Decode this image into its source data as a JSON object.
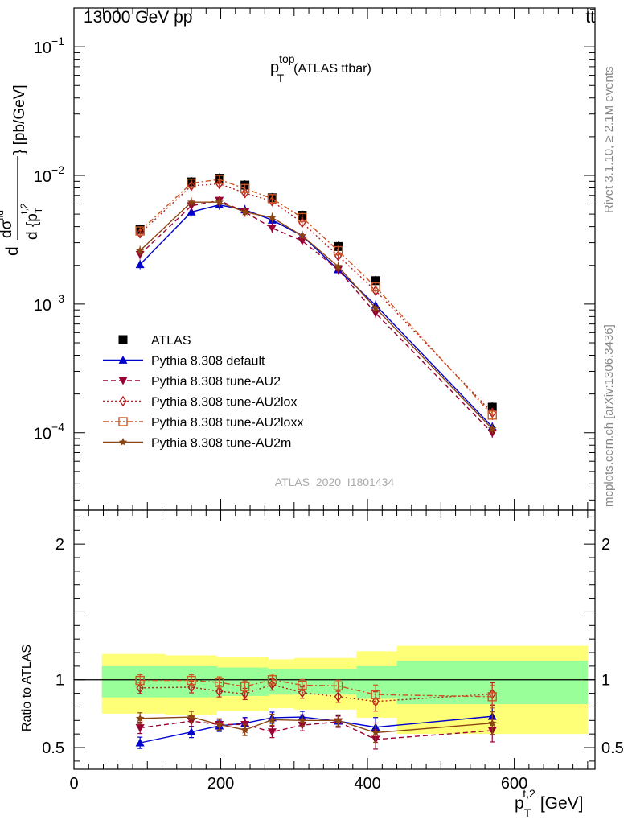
{
  "header": {
    "left": "13000 GeV pp",
    "right": "tt̄"
  },
  "side": {
    "rivet": "Rivet 3.1.10, ≥ 2.1M events",
    "mcplots": "mcplots.cern.ch [arXiv:1306.3436]"
  },
  "analysis_id": "ATLAS_2020_I1801434",
  "chart_data": [
    {
      "type": "line",
      "title": "p_T^top (ATLAS ttbar)",
      "title_main": "p",
      "title_sup": "top",
      "title_sub": "T",
      "title_suffix": "(ATLAS ttbar)",
      "ylabel": "d dσ^{fid} / d {p_T^{t,2}} [pb/GeV]",
      "ylabel_num": "dσ",
      "ylabel_num_sup": "fid",
      "ylabel_den": "d {p",
      "ylabel_den_sub": "T",
      "ylabel_den_sup": "t,2",
      "ylabel_unit": "} [pb/GeV]",
      "y_scale": "log",
      "ylim": [
        2.5e-05,
        0.2
      ],
      "xlim": [
        0,
        710
      ],
      "y_tick_labels": [
        {
          "value": 0.1,
          "mantissa": "10",
          "exp": "−1"
        },
        {
          "value": 0.01,
          "mantissa": "10",
          "exp": "−2"
        },
        {
          "value": 0.001,
          "mantissa": "10",
          "exp": "−3"
        },
        {
          "value": 0.0001,
          "mantissa": "10",
          "exp": "−4"
        }
      ],
      "legend_position": "left-middle",
      "x": [
        90,
        160,
        198,
        233,
        270,
        311,
        360,
        411,
        570
      ],
      "series": [
        {
          "name": "ATLAS",
          "color": "#000000",
          "marker": "square",
          "dash": "none",
          "values": [
            0.0038,
            0.0089,
            0.0095,
            0.0084,
            0.0067,
            0.0049,
            0.0028,
            0.00152,
            0.000158
          ]
        },
        {
          "name": "Pythia 8.308 default",
          "color": "#0000cc",
          "marker": "triangle-up",
          "dash": "solid",
          "values": [
            0.00203,
            0.0052,
            0.0059,
            0.0054,
            0.0045,
            0.0034,
            0.00185,
            0.00098,
            0.000111
          ]
        },
        {
          "name": "Pythia 8.308 tune-AU2",
          "color": "#990033",
          "marker": "triangle-down",
          "dash": "dashed",
          "values": [
            0.00243,
            0.0058,
            0.0064,
            0.0052,
            0.0039,
            0.0031,
            0.00185,
            0.00085,
            9.95e-05
          ]
        },
        {
          "name": "Pythia 8.308 tune-AU2lox",
          "color": "#b22222",
          "marker": "diamond-open",
          "dash": "dotted",
          "values": [
            0.00355,
            0.0083,
            0.0086,
            0.0073,
            0.0063,
            0.0043,
            0.00237,
            0.00127,
            0.000143
          ]
        },
        {
          "name": "Pythia 8.308 tune-AU2loxx",
          "color": "#cc5522",
          "marker": "square-open",
          "dash": "dashdot",
          "values": [
            0.0037,
            0.0087,
            0.0093,
            0.0079,
            0.0066,
            0.0047,
            0.0026,
            0.00136,
            0.000137
          ]
        },
        {
          "name": "Pythia 8.308 tune-AU2m",
          "color": "#8b4513",
          "marker": "star",
          "dash": "solid",
          "values": [
            0.0026,
            0.0062,
            0.0062,
            0.0052,
            0.0047,
            0.0034,
            0.00196,
            0.00093,
            0.000107
          ]
        }
      ]
    },
    {
      "type": "line",
      "ylabel": "Ratio to ATLAS",
      "xlabel": "p_T^{t,2} [GeV]",
      "xlabel_main": "p",
      "xlabel_sub": "T",
      "xlabel_sup": "t,2",
      "xlabel_unit": "[GeV]",
      "xlim": [
        0,
        710
      ],
      "ylim": [
        0.34,
        2.25
      ],
      "x_ticks": [
        0,
        200,
        400,
        600
      ],
      "y_ticks": [
        0.5,
        1,
        2
      ],
      "y_tick_labels": [
        "0.5",
        "1",
        "2"
      ],
      "x_tick_labels": [
        "0",
        "200",
        "400",
        "600"
      ],
      "uncertainty_bands": {
        "bin_edges": [
          38,
          125,
          195,
          265,
          300,
          385,
          440,
          700
        ],
        "outer_color": "#ffff77",
        "inner_color": "#99ff99",
        "outer_low": [
          0.75,
          0.74,
          0.77,
          0.79,
          0.78,
          0.72,
          0.6
        ],
        "outer_high": [
          1.19,
          1.18,
          1.17,
          1.15,
          1.16,
          1.21,
          1.25
        ],
        "inner_low": [
          0.87,
          0.87,
          0.88,
          0.89,
          0.89,
          0.86,
          0.82
        ],
        "inner_high": [
          1.1,
          1.1,
          1.09,
          1.08,
          1.08,
          1.1,
          1.14
        ]
      },
      "x": [
        90,
        160,
        198,
        233,
        270,
        311,
        360,
        411,
        570
      ],
      "series": [
        {
          "name": "Pythia 8.308 default",
          "values": [
            0.535,
            0.615,
            0.66,
            0.68,
            0.72,
            0.725,
            0.695,
            0.65,
            0.73
          ]
        },
        {
          "name": "Pythia 8.308 tune-AU2",
          "values": [
            0.645,
            0.695,
            0.67,
            0.67,
            0.615,
            0.665,
            0.69,
            0.56,
            0.625
          ]
        },
        {
          "name": "Pythia 8.308 tune-AU2lox",
          "values": [
            0.94,
            0.945,
            0.915,
            0.895,
            0.965,
            0.905,
            0.875,
            0.84,
            0.895
          ]
        },
        {
          "name": "Pythia 8.308 tune-AU2loxx",
          "values": [
            0.995,
            0.995,
            0.98,
            0.95,
            1.0,
            0.96,
            0.955,
            0.89,
            0.875
          ]
        },
        {
          "name": "Pythia 8.308 tune-AU2m",
          "values": [
            0.715,
            0.725,
            0.67,
            0.63,
            0.705,
            0.7,
            0.7,
            0.61,
            0.68
          ]
        }
      ]
    }
  ]
}
